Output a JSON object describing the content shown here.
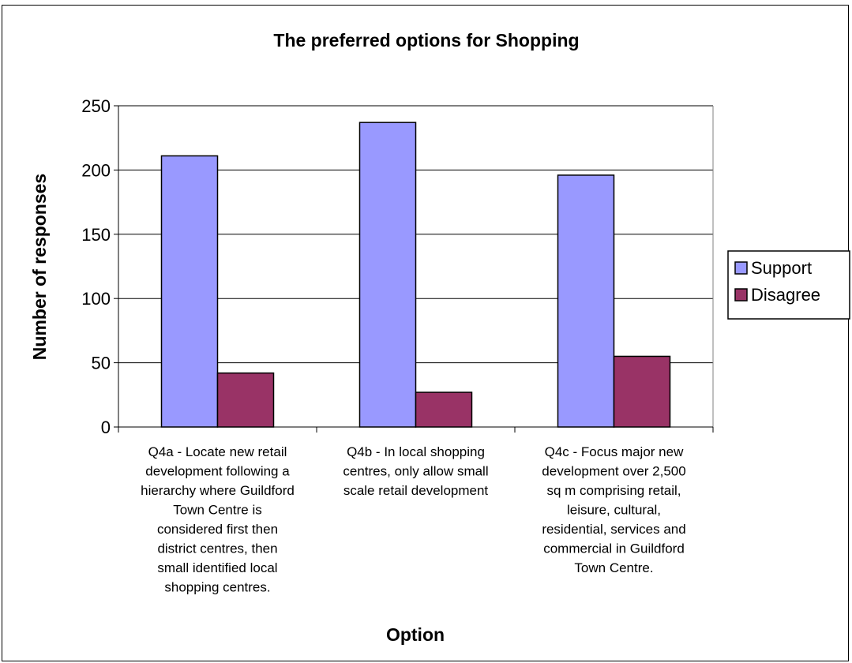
{
  "chart_data": {
    "type": "bar",
    "title": "The preferred options for Shopping",
    "xlabel": "Option",
    "ylabel": "Number of responses",
    "ylim": [
      0,
      250
    ],
    "yticks": [
      0,
      50,
      100,
      150,
      200,
      250
    ],
    "grid": true,
    "legend_position": "right",
    "categories": [
      [
        "Q4a - Locate new retail",
        "development following a",
        "hierarchy where Guildford",
        "Town Centre is",
        "considered first then",
        "district centres, then",
        "small identified local",
        "shopping centres."
      ],
      [
        "Q4b - In local shopping",
        "centres, only allow small",
        "scale retail development"
      ],
      [
        "Q4c - Focus major new",
        "development over 2,500",
        "sq m comprising retail,",
        "leisure, cultural,",
        "residential, services and",
        "commercial in Guildford",
        "Town Centre."
      ]
    ],
    "series": [
      {
        "name": "Support",
        "color": "#9999FF",
        "values": [
          211,
          237,
          196
        ]
      },
      {
        "name": "Disagree",
        "color": "#993366",
        "values": [
          42,
          27,
          55
        ]
      }
    ]
  }
}
